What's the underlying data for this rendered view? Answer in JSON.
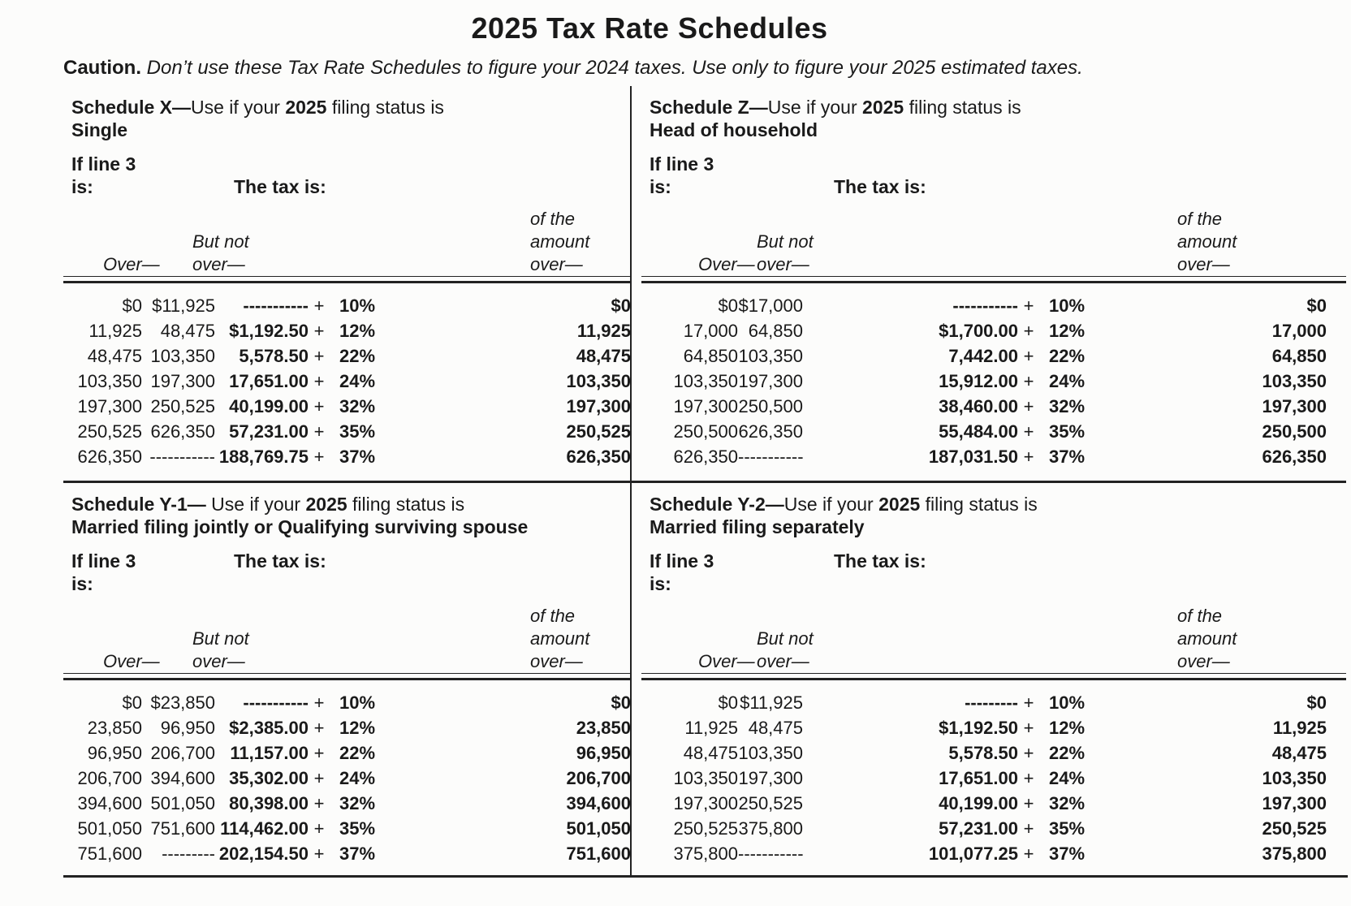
{
  "page": {
    "title": "2025 Tax Rate Schedules",
    "caution_label": "Caution.",
    "caution_text": "Don’t use these Tax Rate Schedules to figure your 2024 taxes. Use only to figure your 2025 estimated taxes."
  },
  "labels": {
    "if_line_3": "If line 3",
    "is": "is:",
    "tax_is": "The tax is:",
    "over_col": "Over—",
    "but_not": "But not",
    "over_lower": "over—",
    "of_the": "of the",
    "amount": "amount",
    "plus": "+"
  },
  "schedules": [
    {
      "name_bold": "Schedule X—",
      "use_text": "Use if your ",
      "year": "2025",
      "tail_text": " filing status is",
      "status": "Single",
      "rows": [
        {
          "over": "$0",
          "but_not_over": "$11,925",
          "base_tax": "-----------",
          "rate": "10%",
          "amount_over": "$0"
        },
        {
          "over": "11,925",
          "but_not_over": "48,475",
          "base_tax": "$1,192.50",
          "rate": "12%",
          "amount_over": "11,925"
        },
        {
          "over": "48,475",
          "but_not_over": "103,350",
          "base_tax": "5,578.50",
          "rate": "22%",
          "amount_over": "48,475"
        },
        {
          "over": "103,350",
          "but_not_over": "197,300",
          "base_tax": "17,651.00",
          "rate": "24%",
          "amount_over": "103,350"
        },
        {
          "over": "197,300",
          "but_not_over": "250,525",
          "base_tax": "40,199.00",
          "rate": "32%",
          "amount_over": "197,300"
        },
        {
          "over": "250,525",
          "but_not_over": "626,350",
          "base_tax": "57,231.00",
          "rate": "35%",
          "amount_over": "250,525"
        },
        {
          "over": "626,350",
          "but_not_over": "-----------",
          "base_tax": "188,769.75",
          "rate": "37%",
          "amount_over": "626,350"
        }
      ]
    },
    {
      "name_bold": "Schedule Z—",
      "use_text": "Use if your ",
      "year": "2025",
      "tail_text": " filing status is",
      "status": "Head of household",
      "rows": [
        {
          "over": "$0",
          "but_not_over": "$17,000",
          "base_tax": "-----------",
          "rate": "10%",
          "amount_over": "$0"
        },
        {
          "over": "17,000",
          "but_not_over": "64,850",
          "base_tax": "$1,700.00",
          "rate": "12%",
          "amount_over": "17,000"
        },
        {
          "over": "64,850",
          "but_not_over": "103,350",
          "base_tax": "7,442.00",
          "rate": "22%",
          "amount_over": "64,850"
        },
        {
          "over": "103,350",
          "but_not_over": "197,300",
          "base_tax": "15,912.00",
          "rate": "24%",
          "amount_over": "103,350"
        },
        {
          "over": "197,300",
          "but_not_over": "250,500",
          "base_tax": "38,460.00",
          "rate": "32%",
          "amount_over": "197,300"
        },
        {
          "over": "250,500",
          "but_not_over": "626,350",
          "base_tax": "55,484.00",
          "rate": "35%",
          "amount_over": "250,500"
        },
        {
          "over": "626,350",
          "but_not_over": "-----------",
          "base_tax": "187,031.50",
          "rate": "37%",
          "amount_over": "626,350"
        }
      ]
    },
    {
      "name_bold": "Schedule Y-1—",
      "use_text": " Use if your ",
      "year": "2025",
      "tail_text": " filing status is",
      "status": "Married filing jointly or Qualifying surviving spouse",
      "rows": [
        {
          "over": "$0",
          "but_not_over": "$23,850",
          "base_tax": "-----------",
          "rate": "10%",
          "amount_over": "$0"
        },
        {
          "over": "23,850",
          "but_not_over": "96,950",
          "base_tax": "$2,385.00",
          "rate": "12%",
          "amount_over": "23,850"
        },
        {
          "over": "96,950",
          "but_not_over": "206,700",
          "base_tax": "11,157.00",
          "rate": "22%",
          "amount_over": "96,950"
        },
        {
          "over": "206,700",
          "but_not_over": "394,600",
          "base_tax": "35,302.00",
          "rate": "24%",
          "amount_over": "206,700"
        },
        {
          "over": "394,600",
          "but_not_over": "501,050",
          "base_tax": "80,398.00",
          "rate": "32%",
          "amount_over": "394,600"
        },
        {
          "over": "501,050",
          "but_not_over": "751,600",
          "base_tax": "114,462.00",
          "rate": "35%",
          "amount_over": "501,050"
        },
        {
          "over": "751,600",
          "but_not_over": "---------",
          "base_tax": "202,154.50",
          "rate": "37%",
          "amount_over": "751,600"
        }
      ]
    },
    {
      "name_bold": "Schedule Y-2—",
      "use_text": "Use if your ",
      "year": "2025",
      "tail_text": " filing status is",
      "status": "Married filing separately",
      "rows": [
        {
          "over": "$0",
          "but_not_over": "$11,925",
          "base_tax": "---------",
          "rate": "10%",
          "amount_over": "$0"
        },
        {
          "over": "11,925",
          "but_not_over": "48,475",
          "base_tax": "$1,192.50",
          "rate": "12%",
          "amount_over": "11,925"
        },
        {
          "over": "48,475",
          "but_not_over": "103,350",
          "base_tax": "5,578.50",
          "rate": "22%",
          "amount_over": "48,475"
        },
        {
          "over": "103,350",
          "but_not_over": "197,300",
          "base_tax": "17,651.00",
          "rate": "24%",
          "amount_over": "103,350"
        },
        {
          "over": "197,300",
          "but_not_over": "250,525",
          "base_tax": "40,199.00",
          "rate": "32%",
          "amount_over": "197,300"
        },
        {
          "over": "250,525",
          "but_not_over": "375,800",
          "base_tax": "57,231.00",
          "rate": "35%",
          "amount_over": "250,525"
        },
        {
          "over": "375,800",
          "but_not_over": "-----------",
          "base_tax": "101,077.25",
          "rate": "37%",
          "amount_over": "375,800"
        }
      ]
    }
  ]
}
